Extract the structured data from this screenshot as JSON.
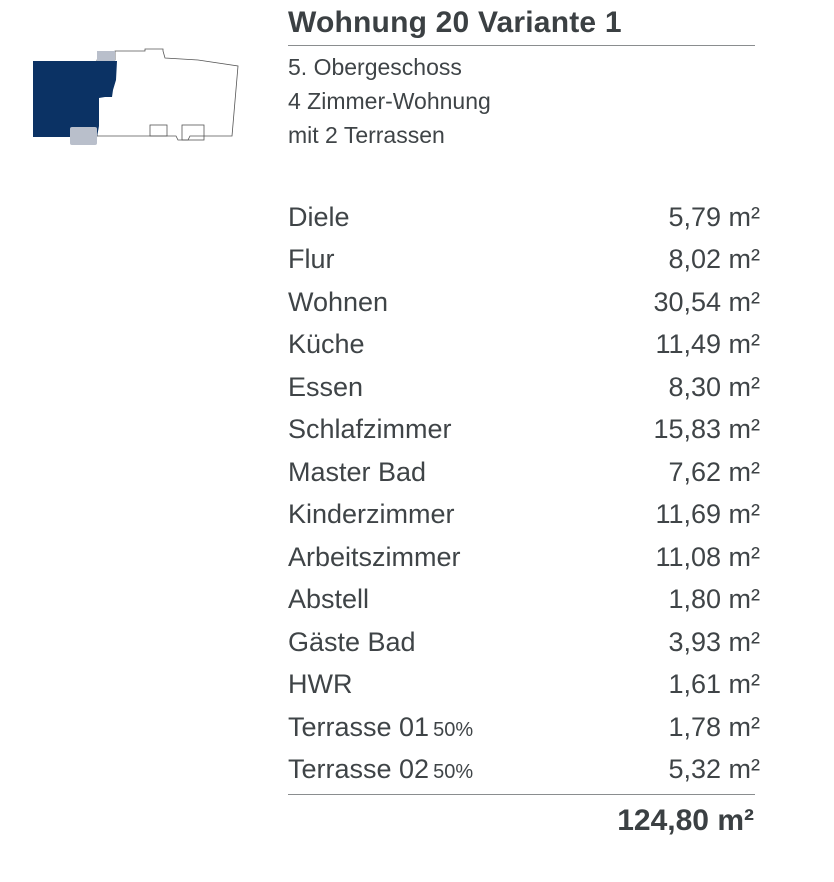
{
  "title": "Wohnung 20 Variante 1",
  "subtitle_lines": [
    "5. Obergeschoss",
    "4 Zimmer-Wohnung",
    "mit 2 Terrassen"
  ],
  "colors": {
    "apartment_highlight": "#0b3264",
    "terrace": "#b9bfcb",
    "text": "#3f4447"
  },
  "rooms": [
    {
      "name": "Diele",
      "note": "",
      "area": "5,79 m²"
    },
    {
      "name": "Flur",
      "note": "",
      "area": "8,02 m²"
    },
    {
      "name": "Wohnen",
      "note": "",
      "area": "30,54 m²"
    },
    {
      "name": "Küche",
      "note": "",
      "area": "11,49 m²"
    },
    {
      "name": "Essen",
      "note": "",
      "area": "8,30 m²"
    },
    {
      "name": "Schlafzimmer",
      "note": "",
      "area": "15,83 m²"
    },
    {
      "name": "Master Bad",
      "note": "",
      "area": "7,62 m²"
    },
    {
      "name": "Kinderzimmer",
      "note": "",
      "area": "11,69 m²"
    },
    {
      "name": "Arbeitszimmer",
      "note": "",
      "area": "11,08 m²"
    },
    {
      "name": "Abstell",
      "note": "",
      "area": "1,80 m²"
    },
    {
      "name": "Gäste Bad",
      "note": "",
      "area": "3,93 m²"
    },
    {
      "name": "HWR",
      "note": "",
      "area": "1,61 m²"
    },
    {
      "name": "Terrasse 01",
      "note": "50%",
      "area": "1,78 m²"
    },
    {
      "name": "Terrasse 02",
      "note": "50%",
      "area": "5,32 m²"
    }
  ],
  "total": "124,80 m²"
}
